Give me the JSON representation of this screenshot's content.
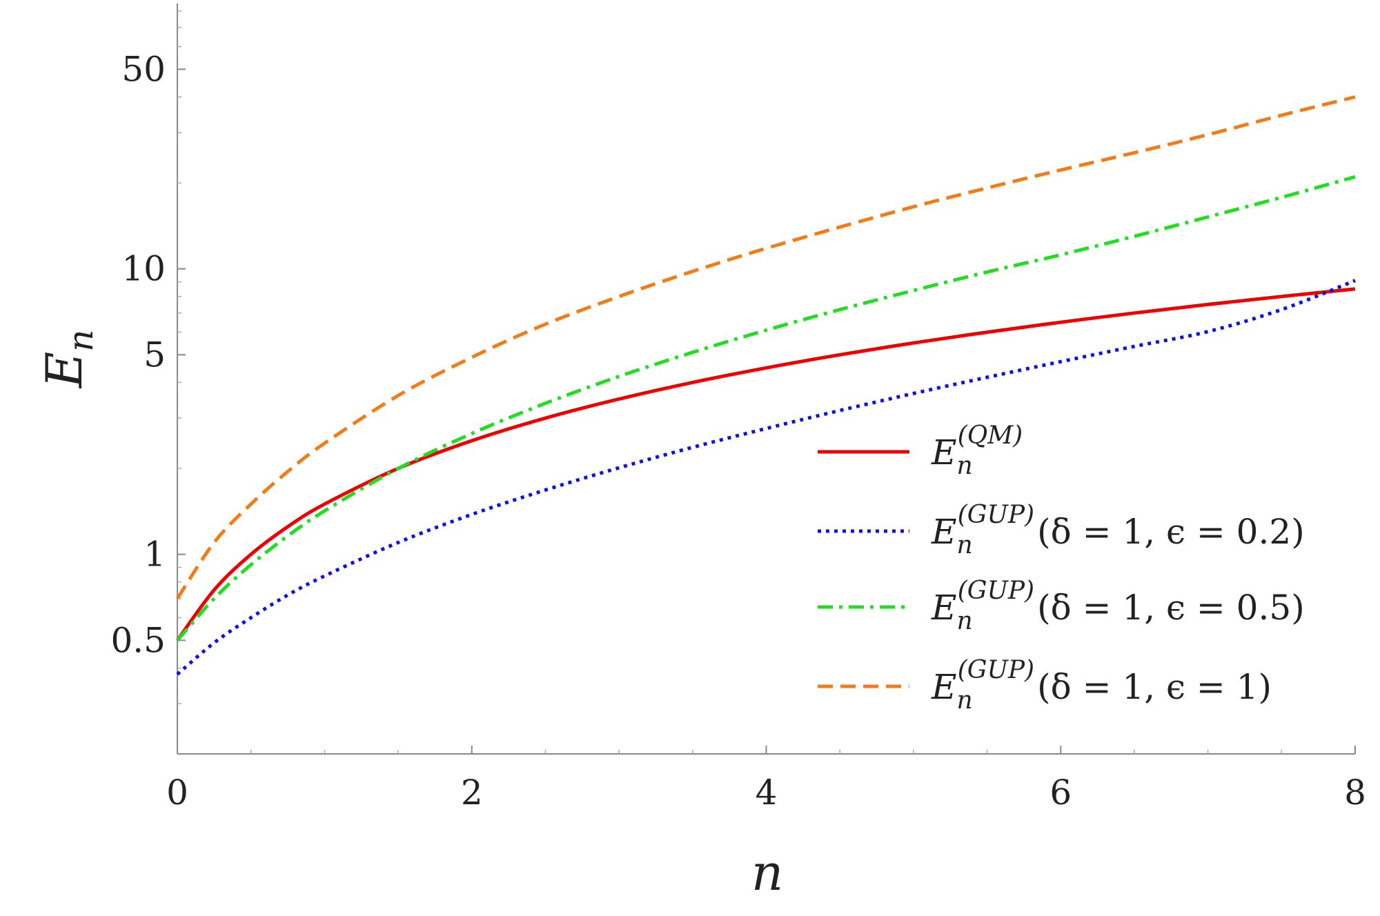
{
  "chart_data": {
    "type": "line",
    "xlabel": "n",
    "ylabel": "E",
    "ylabel_sub": "n",
    "xlim": [
      0,
      8
    ],
    "ylim": [
      0.2,
      85
    ],
    "y_scale": "log",
    "grid": false,
    "legend_position": "right",
    "x_ticks": [
      "0",
      "2",
      "4",
      "6",
      "8"
    ],
    "y_ticks": [
      "0.5",
      "1",
      "5",
      "10",
      "50"
    ],
    "series": [
      {
        "name": "E_n^{(QM)}",
        "color": "#ee0000",
        "style": "solid",
        "x": [
          0,
          0.25,
          0.5,
          0.75,
          1,
          1.5,
          2,
          2.5,
          3,
          3.5,
          4,
          4.5,
          5,
          5.5,
          6,
          6.5,
          7,
          7.5,
          8
        ],
        "y": [
          0.5,
          0.75,
          1.0,
          1.25,
          1.5,
          2.0,
          2.5,
          3.0,
          3.5,
          4.0,
          4.5,
          5.0,
          5.5,
          6.0,
          6.5,
          7.0,
          7.5,
          8.0,
          8.5
        ]
      },
      {
        "name": "E_n^{(GUP)}(δ = 1, ϵ = 0.2)",
        "color": "#1010e0",
        "style": "dotted",
        "x": [
          0,
          0.25,
          0.5,
          0.75,
          1,
          1.5,
          2,
          2.5,
          3,
          3.5,
          4,
          4.5,
          5,
          5.5,
          6,
          6.5,
          7,
          7.5,
          8
        ],
        "y": [
          0.38,
          0.49,
          0.6,
          0.72,
          0.84,
          1.1,
          1.38,
          1.68,
          2.01,
          2.37,
          2.76,
          3.19,
          3.66,
          4.17,
          4.73,
          5.35,
          6.03,
          7.2,
          9.1
        ]
      },
      {
        "name": "E_n^{(GUP)}(δ = 1, ϵ = 0.5)",
        "color": "#22dd22",
        "style": "dashdot",
        "x": [
          0,
          0.25,
          0.5,
          0.75,
          1,
          1.5,
          2,
          2.5,
          3,
          3.5,
          4,
          4.5,
          5,
          5.5,
          6,
          6.5,
          7,
          7.5,
          8
        ],
        "y": [
          0.5,
          0.7,
          0.92,
          1.16,
          1.42,
          2.0,
          2.65,
          3.38,
          4.2,
          5.1,
          6.1,
          7.2,
          8.4,
          9.75,
          11.2,
          13.0,
          15.2,
          17.8,
          21.0
        ]
      },
      {
        "name": "E_n^{(GUP)}(δ = 1, ϵ = 1)",
        "color": "#f07d1a",
        "style": "dashed",
        "x": [
          0,
          0.25,
          0.5,
          0.75,
          1,
          1.5,
          2,
          2.5,
          3,
          3.5,
          4,
          4.5,
          5,
          5.5,
          6,
          6.5,
          7,
          7.5,
          8
        ],
        "y": [
          0.7,
          1.1,
          1.5,
          1.95,
          2.45,
          3.6,
          4.9,
          6.4,
          8.0,
          9.8,
          11.8,
          14.0,
          16.5,
          19.2,
          22.2,
          25.5,
          29.5,
          34.5,
          40.0
        ]
      }
    ]
  }
}
